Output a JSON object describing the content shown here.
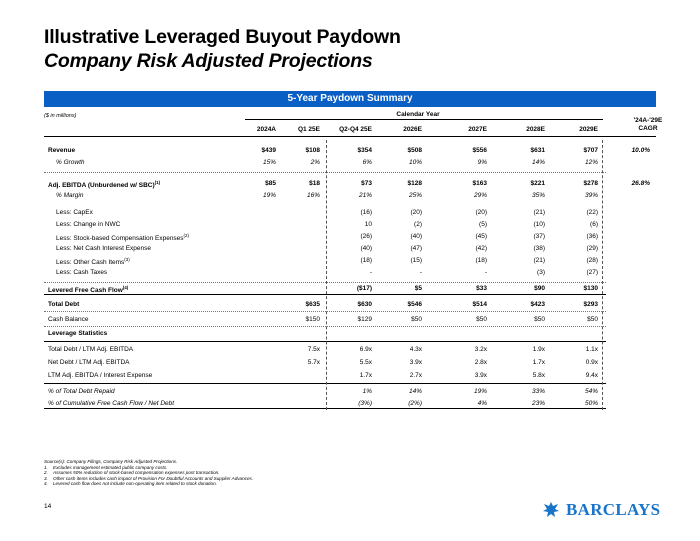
{
  "title": "Illustrative Leveraged Buyout Paydown",
  "subtitle": "Company Risk Adjusted Projections",
  "banner": "5-Year Paydown Summary",
  "units": "($ in millions)",
  "calendar_year": "Calendar Year",
  "columns": [
    "2024A",
    "Q1 25E",
    "Q2-Q4 25E",
    "2026E",
    "2027E",
    "2028E",
    "2029E"
  ],
  "cagr_header_line1": "'24A-'29E",
  "cagr_header_line2": "CAGR",
  "rows": [
    {
      "label": "Revenue",
      "sup": "",
      "style": "bold",
      "values": [
        "$439",
        "$108",
        "$354",
        "$508",
        "$556",
        "$631",
        "$707"
      ],
      "cagr": "10.0%"
    },
    {
      "label": "% Growth",
      "sup": "",
      "style": "italic-ind",
      "values": [
        "15%",
        "2%",
        "6%",
        "10%",
        "9%",
        "14%",
        "12%"
      ],
      "cagr": ""
    },
    {
      "label": "Adj. EBITDA (Unburdened w/ SBC)",
      "sup": "(1)",
      "style": "bold",
      "values": [
        "$85",
        "$18",
        "$73",
        "$128",
        "$163",
        "$221",
        "$278"
      ],
      "cagr": "26.8%"
    },
    {
      "label": "% Margin",
      "sup": "",
      "style": "italic-ind",
      "values": [
        "19%",
        "16%",
        "21%",
        "25%",
        "29%",
        "35%",
        "39%"
      ],
      "cagr": ""
    },
    {
      "label": "Less: CapEx",
      "sup": "",
      "style": "ind",
      "values": [
        "",
        "",
        "(16)",
        "(20)",
        "(20)",
        "(21)",
        "(22)"
      ],
      "cagr": ""
    },
    {
      "label": "Less: Change in NWC",
      "sup": "",
      "style": "ind",
      "values": [
        "",
        "",
        "10",
        "(2)",
        "(5)",
        "(10)",
        "(6)"
      ],
      "cagr": ""
    },
    {
      "label": "Less: Stock-based Compensation Expenses",
      "sup": "(2)",
      "style": "ind",
      "values": [
        "",
        "",
        "(26)",
        "(40)",
        "(45)",
        "(37)",
        "(36)"
      ],
      "cagr": ""
    },
    {
      "label": "Less: Net Cash Interest Expense",
      "sup": "",
      "style": "ind",
      "values": [
        "",
        "",
        "(40)",
        "(47)",
        "(42)",
        "(38)",
        "(29)"
      ],
      "cagr": ""
    },
    {
      "label": "Less: Other Cash Items",
      "sup": "(3)",
      "style": "ind",
      "values": [
        "",
        "",
        "(18)",
        "(15)",
        "(18)",
        "(21)",
        "(28)"
      ],
      "cagr": ""
    },
    {
      "label": "Less: Cash Taxes",
      "sup": "",
      "style": "ind",
      "values": [
        "",
        "",
        "-",
        "-",
        "-",
        "(3)",
        "(27)"
      ],
      "cagr": ""
    },
    {
      "label": "Levered Free Cash Flow",
      "sup": "(4)",
      "style": "bold",
      "values": [
        "",
        "",
        "($17)",
        "$5",
        "$33",
        "$90",
        "$130"
      ],
      "cagr": ""
    },
    {
      "label": "Total Debt",
      "sup": "",
      "style": "bold",
      "values": [
        "",
        "$635",
        "$630",
        "$546",
        "$514",
        "$423",
        "$293"
      ],
      "cagr": ""
    },
    {
      "label": "Cash Balance",
      "sup": "",
      "style": "plain",
      "values": [
        "",
        "$150",
        "$129",
        "$50",
        "$50",
        "$50",
        "$50"
      ],
      "cagr": ""
    },
    {
      "label": "Leverage Statistics",
      "sup": "",
      "style": "bold",
      "values": [
        "",
        "",
        "",
        "",
        "",
        "",
        ""
      ],
      "cagr": ""
    },
    {
      "label": "Total Debt / LTM Adj. EBITDA",
      "sup": "",
      "style": "plain",
      "values": [
        "",
        "7.5x",
        "6.9x",
        "4.3x",
        "3.2x",
        "1.9x",
        "1.1x"
      ],
      "cagr": ""
    },
    {
      "label": "Net Debt / LTM Adj. EBITDA",
      "sup": "",
      "style": "plain",
      "values": [
        "",
        "5.7x",
        "5.5x",
        "3.9x",
        "2.8x",
        "1.7x",
        "0.9x"
      ],
      "cagr": ""
    },
    {
      "label": "LTM Adj. EBITDA / Interest Expense",
      "sup": "",
      "style": "plain",
      "values": [
        "",
        "",
        "1.7x",
        "2.7x",
        "3.9x",
        "5.8x",
        "9.4x"
      ],
      "cagr": ""
    },
    {
      "label": "% of Total Debt Repaid",
      "sup": "",
      "style": "italic",
      "values": [
        "",
        "",
        "1%",
        "14%",
        "19%",
        "33%",
        "54%"
      ],
      "cagr": ""
    },
    {
      "label": "% of Cumulative Free Cash Flow / Net Debt",
      "sup": "",
      "style": "italic",
      "values": [
        "",
        "",
        "(3%)",
        "(2%)",
        "4%",
        "23%",
        "50%"
      ],
      "cagr": ""
    }
  ],
  "footnotes": [
    {
      "num": "",
      "text": "Source(s): Company Filings, Company Risk Adjusted Projections."
    },
    {
      "num": "1.",
      "text": "Excludes management estimated public company costs."
    },
    {
      "num": "2.",
      "text": "Assumes 50% reduction of stock-based compensation expenses post transaction."
    },
    {
      "num": "3.",
      "text": "Other cash items includes cash impact of Provision For Doubtful Accounts and Supplier Advances."
    },
    {
      "num": "4.",
      "text": "Levered cash flow does not include non-operating item related to stock donation."
    }
  ],
  "page_number": "14",
  "logo_text": "BARCLAYS",
  "colors": {
    "banner": "#0a5fc5",
    "logo": "#1a74c9"
  },
  "icons": {
    "logo_mark": "barclays-eagle-icon"
  }
}
